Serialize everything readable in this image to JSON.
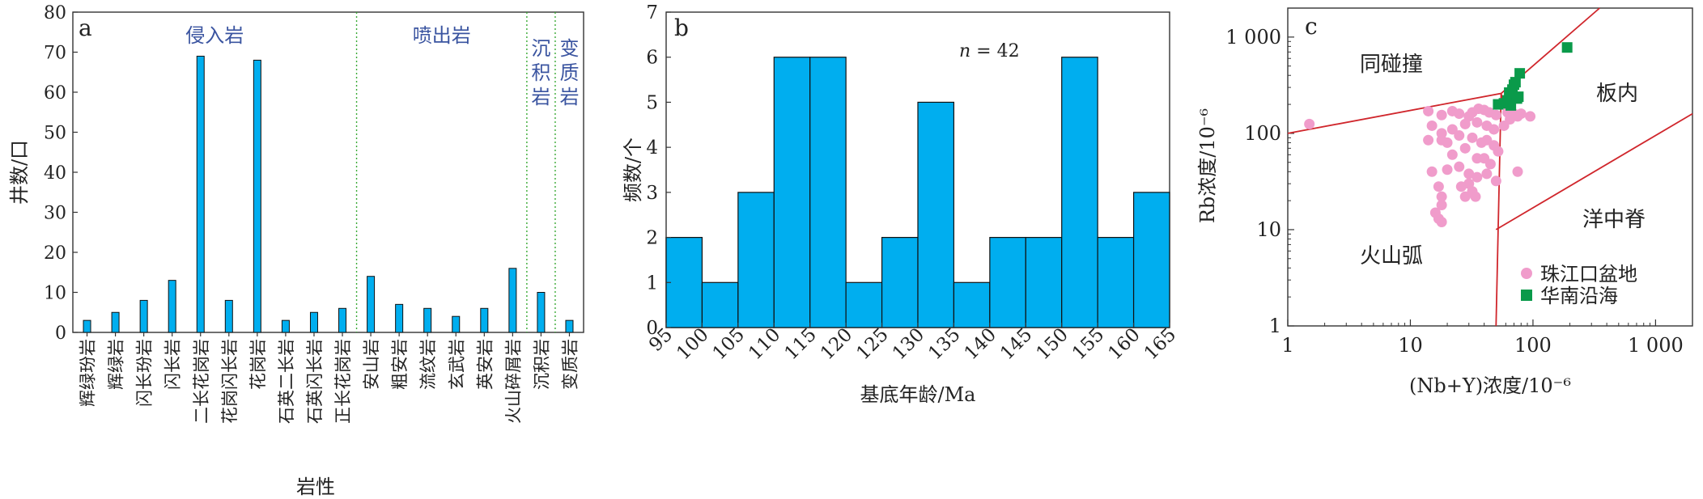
{
  "chart_data": [
    {
      "type": "bar",
      "panel_label": "a",
      "ylabel": "井数/口",
      "xlabel": "岩性",
      "ylim": [
        0,
        80
      ],
      "yticks": [
        0,
        10,
        20,
        30,
        40,
        50,
        60,
        70,
        80
      ],
      "categories": [
        "辉绿玢岩",
        "辉绿岩",
        "闪长玢岩",
        "闪长岩",
        "二长花岗岩",
        "花岗闪长岩",
        "花岗岩",
        "石英二长岩",
        "石英闪长岩",
        "正长花岗岩",
        "安山岩",
        "粗安岩",
        "流纹岩",
        "玄武岩",
        "英安岩",
        "火山碎屑岩",
        "沉积岩",
        "变质岩"
      ],
      "values": [
        3,
        5,
        8,
        13,
        69,
        8,
        68,
        3,
        5,
        6,
        14,
        7,
        6,
        4,
        6,
        16,
        10,
        3
      ],
      "groups": [
        {
          "label": "侵入岩",
          "from": 0,
          "to": 9
        },
        {
          "label": "喷出岩",
          "from": 10,
          "to": 15
        },
        {
          "label": "沉积岩",
          "from": 16,
          "to": 16
        },
        {
          "label": "变质岩",
          "from": 17,
          "to": 17
        }
      ],
      "colors": {
        "bar": "#00aeef",
        "divider": "#3aaa35"
      }
    },
    {
      "type": "bar",
      "panel_label": "b",
      "ylabel": "频数/个",
      "xlabel": "基底年龄/Ma",
      "annotation": "n = 42",
      "ylim": [
        0,
        7
      ],
      "yticks": [
        0,
        1,
        2,
        3,
        4,
        5,
        6,
        7
      ],
      "bin_edges": [
        95,
        100,
        105,
        110,
        115,
        120,
        125,
        130,
        135,
        140,
        145,
        150,
        155,
        160,
        165
      ],
      "values": [
        2,
        1,
        3,
        6,
        6,
        1,
        2,
        5,
        1,
        2,
        2,
        6,
        2,
        3
      ],
      "colors": {
        "bar": "#00aeef"
      }
    },
    {
      "type": "scatter",
      "panel_label": "c",
      "xlabel": "(Nb+Y)浓度/10⁻⁶",
      "ylabel": "Rb浓度/10⁻⁶",
      "xscale": "log",
      "yscale": "log",
      "xlim": [
        1,
        2000
      ],
      "ylim": [
        1,
        2000
      ],
      "xticks": [
        "1",
        "10",
        "100",
        "1 000"
      ],
      "yticks": [
        "1",
        "10",
        "100",
        "1 000"
      ],
      "region_labels": [
        "同碰撞",
        "板内",
        "洋中脊",
        "火山弧"
      ],
      "boundaries": [
        [
          [
            1,
            100
          ],
          [
            55,
            260
          ],
          [
            350,
            2000
          ]
        ],
        [
          [
            50,
            1
          ],
          [
            55,
            260
          ]
        ],
        [
          [
            55,
            260
          ],
          [
            58,
            185
          ]
        ],
        [
          [
            50,
            10
          ],
          [
            2000,
            160
          ]
        ]
      ],
      "series": [
        {
          "name": "珠江口盆地",
          "marker": "circle",
          "color": "#f09ccb",
          "points": [
            [
              1.5,
              125
            ],
            [
              14,
              170
            ],
            [
              18,
              155
            ],
            [
              22,
              170
            ],
            [
              25,
              160
            ],
            [
              30,
              150
            ],
            [
              32,
              165
            ],
            [
              36,
              180
            ],
            [
              40,
              175
            ],
            [
              44,
              165
            ],
            [
              50,
              155
            ],
            [
              62,
              165
            ],
            [
              70,
              160
            ],
            [
              80,
              160
            ],
            [
              95,
              150
            ],
            [
              15,
              120
            ],
            [
              18,
              100
            ],
            [
              22,
              110
            ],
            [
              28,
              125
            ],
            [
              35,
              130
            ],
            [
              42,
              120
            ],
            [
              48,
              110
            ],
            [
              58,
              120
            ],
            [
              65,
              140
            ],
            [
              75,
              150
            ],
            [
              14,
              85
            ],
            [
              18,
              85
            ],
            [
              20,
              80
            ],
            [
              25,
              95
            ],
            [
              32,
              90
            ],
            [
              38,
              80
            ],
            [
              42,
              85
            ],
            [
              48,
              75
            ],
            [
              52,
              65
            ],
            [
              28,
              70
            ],
            [
              22,
              60
            ],
            [
              35,
              55
            ],
            [
              40,
              55
            ],
            [
              45,
              48
            ],
            [
              25,
              45
            ],
            [
              30,
              38
            ],
            [
              35,
              35
            ],
            [
              42,
              38
            ],
            [
              50,
              32
            ],
            [
              30,
              30
            ],
            [
              26,
              28
            ],
            [
              32,
              25
            ],
            [
              15,
              40
            ],
            [
              20,
              42
            ],
            [
              17,
              28
            ],
            [
              18,
              22
            ],
            [
              34,
              22
            ],
            [
              28,
              22
            ],
            [
              18,
              18
            ],
            [
              16,
              15
            ],
            [
              17,
              13
            ],
            [
              18,
              12
            ],
            [
              75,
              40
            ]
          ]
        },
        {
          "name": "华南沿海",
          "marker": "square",
          "color": "#0a9a4a",
          "points": [
            [
              52,
              200
            ],
            [
              58,
              205
            ],
            [
              62,
              220
            ],
            [
              64,
              265
            ],
            [
              66,
              195
            ],
            [
              68,
              285
            ],
            [
              70,
              320
            ],
            [
              72,
              340
            ],
            [
              74,
              230
            ],
            [
              76,
              240
            ],
            [
              78,
              420
            ],
            [
              190,
              780
            ]
          ]
        }
      ]
    }
  ]
}
